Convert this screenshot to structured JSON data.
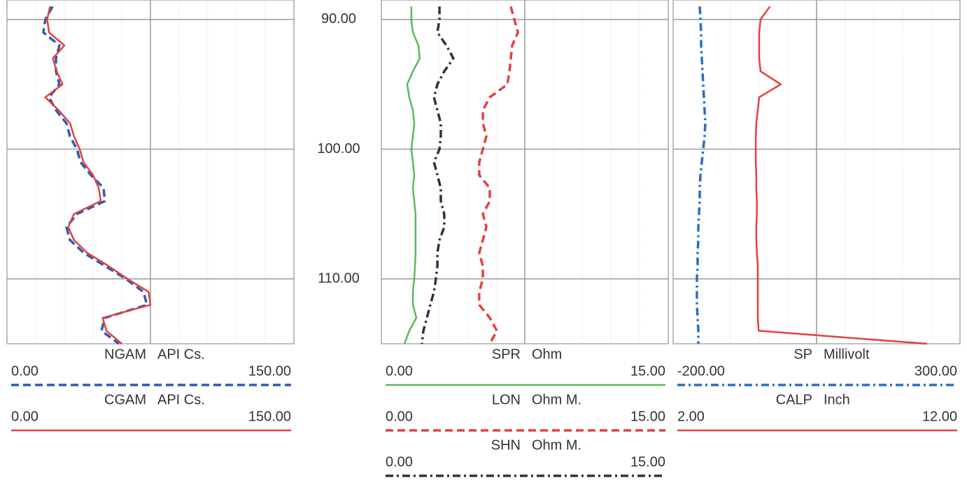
{
  "chart_data": {
    "type": "line",
    "x": [
      89,
      90,
      91,
      92,
      93,
      94,
      95,
      96,
      97,
      98,
      99,
      100,
      101,
      102,
      103,
      104,
      105,
      106,
      107,
      108,
      109,
      110,
      111,
      112,
      113,
      114,
      115
    ],
    "xlim": [
      88.5,
      115
    ],
    "xticks": [
      {
        "value": 90,
        "label": "90.00"
      },
      {
        "value": 100,
        "label": "100.00"
      },
      {
        "value": 110,
        "label": "110.00"
      }
    ],
    "grid": true,
    "tracks": [
      {
        "series": [
          {
            "name": "NGAM",
            "unit": "API Cs.",
            "color": "#2a5db0",
            "style": "dashed",
            "ylim": [
              0,
              150
            ],
            "yticks": [
              {
                "value": 0,
                "label": "0.00"
              },
              {
                "value": 150,
                "label": "150.00"
              }
            ],
            "values": [
              23.8,
              20.1,
              19,
              27.4,
              25.6,
              25.6,
              27.4,
              22,
              25.6,
              31.1,
              32.9,
              36.6,
              38.4,
              43.9,
              50.5,
              51.2,
              36.6,
              31.1,
              32.9,
              40.2,
              51.2,
              62.2,
              71.3,
              73.2,
              51.2,
              49.4,
              58.5
            ]
          },
          {
            "name": "CGAM",
            "unit": "API Cs.",
            "color": "#e2413f",
            "style": "solid",
            "ylim": [
              0,
              150
            ],
            "yticks": [
              {
                "value": 0,
                "label": "0.00"
              },
              {
                "value": 150,
                "label": "150.00"
              }
            ],
            "values": [
              22.5,
              21,
              22,
              30,
              24,
              26,
              29,
              20,
              27,
              33,
              35,
              38,
              40,
              45,
              48,
              49,
              35,
              32,
              35,
              42,
              53,
              63,
              74,
              75,
              50,
              52,
              60
            ]
          }
        ]
      },
      {
        "series": [
          {
            "name": "SPR",
            "unit": "Ohm",
            "color": "#5cb85c",
            "style": "solid",
            "ylim": [
              0,
              15
            ],
            "yticks": [
              {
                "value": 0,
                "label": "0.00"
              },
              {
                "value": 15,
                "label": "15.00"
              }
            ],
            "values": [
              1.57,
              1.57,
              1.65,
              1.94,
              2.01,
              1.65,
              1.35,
              1.46,
              1.65,
              1.72,
              1.65,
              1.57,
              1.65,
              1.72,
              1.65,
              1.72,
              1.79,
              1.79,
              1.79,
              1.79,
              1.76,
              1.72,
              1.65,
              1.65,
              1.83,
              1.46,
              1.21
            ]
          },
          {
            "name": "LON",
            "unit": "Ohm M.",
            "color": "#e2413f",
            "style": "dashed",
            "ylim": [
              0,
              15
            ],
            "yticks": [
              {
                "value": 0,
                "label": "0.00"
              },
              {
                "value": 15,
                "label": "15.00"
              }
            ],
            "values": [
              6.77,
              6.95,
              7.14,
              6.84,
              6.77,
              6.7,
              6.59,
              5.67,
              5.31,
              5.31,
              5.49,
              5.31,
              5.12,
              5.12,
              5.67,
              5.67,
              5.31,
              5.49,
              5.31,
              5.12,
              5.31,
              5.31,
              5.12,
              5.12,
              5.67,
              6.04,
              5.67
            ]
          },
          {
            "name": "SHN",
            "unit": "Ohm M.",
            "color": "#333333",
            "style": "dashdot",
            "ylim": [
              0,
              15
            ],
            "yticks": [
              {
                "value": 0,
                "label": "0.00"
              },
              {
                "value": 15,
                "label": "15.00"
              }
            ],
            "values": [
              3.04,
              3.04,
              2.93,
              3.4,
              3.77,
              3.29,
              2.93,
              2.75,
              2.93,
              3.11,
              3.11,
              3.04,
              2.75,
              2.93,
              3.11,
              3.11,
              3.29,
              3.29,
              3.04,
              2.93,
              2.93,
              2.85,
              2.75,
              2.56,
              2.38,
              2.2,
              2.12
            ]
          }
        ]
      },
      {
        "series": [
          {
            "name": "SP",
            "unit": "Millivolt",
            "color": "#2a6fc0",
            "style": "dashdot",
            "ylim": [
              -200,
              300
            ],
            "yticks": [
              {
                "value": -200,
                "label": "-200.00"
              },
              {
                "value": 300,
                "label": "300.00"
              }
            ],
            "values": [
              -153.7,
              -152.4,
              -151.2,
              -151.2,
              -150,
              -148.8,
              -147.6,
              -146.3,
              -145.1,
              -143.9,
              -145.1,
              -147.6,
              -150,
              -152.4,
              -153.7,
              -153.7,
              -154.9,
              -156.1,
              -156.1,
              -157.3,
              -157.3,
              -158.5,
              -158.5,
              -158.5,
              -157.3,
              -156.1,
              -156.1
            ]
          },
          {
            "name": "CALP",
            "unit": "Inch",
            "color": "#e2413f",
            "style": "solid",
            "ylim": [
              2,
              12
            ],
            "yticks": [
              {
                "value": 2,
                "label": "2.00"
              },
              {
                "value": 12,
                "label": "12.00"
              }
            ],
            "values": [
              5.37,
              5.05,
              5,
              5,
              5,
              5.05,
              5.75,
              5,
              4.95,
              4.9,
              4.88,
              4.88,
              4.88,
              4.9,
              4.9,
              4.92,
              4.92,
              4.9,
              4.9,
              4.92,
              4.95,
              4.95,
              4.95,
              4.95,
              4.95,
              4.98,
              10.85
            ]
          }
        ]
      }
    ]
  }
}
